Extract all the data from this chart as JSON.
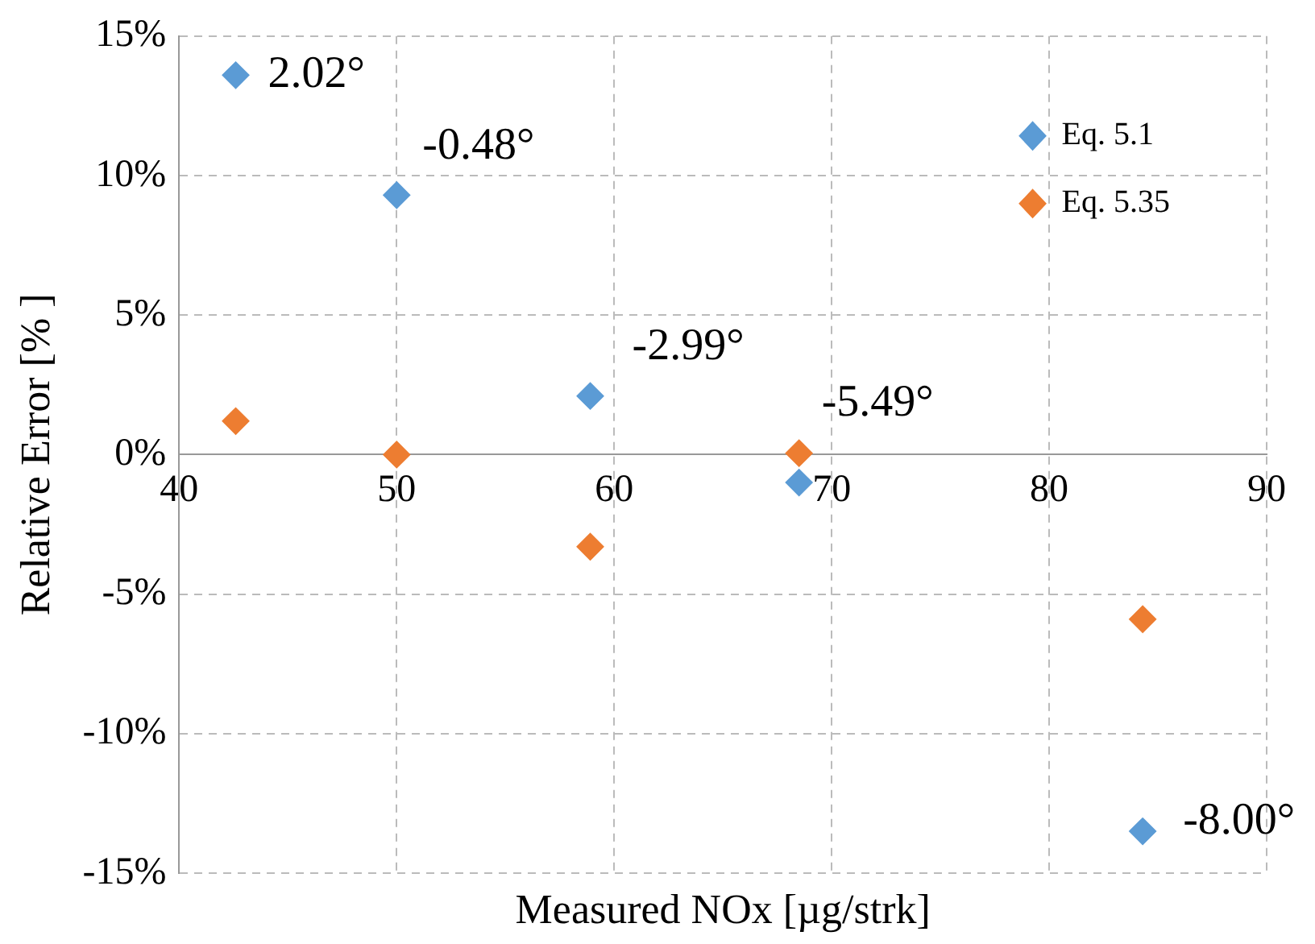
{
  "chart_data": {
    "type": "scatter",
    "xlabel": "Measured NOx [µg/strk]",
    "ylabel": "Relative Error [% ]",
    "xlim": [
      40,
      90
    ],
    "xticks": [
      40,
      50,
      60,
      70,
      80,
      90
    ],
    "ylim": [
      -15,
      15
    ],
    "yticks": [
      {
        "value": -15,
        "label": "-15%"
      },
      {
        "value": -10,
        "label": "-10%"
      },
      {
        "value": -5,
        "label": "-5%"
      },
      {
        "value": 0,
        "label": "0%"
      },
      {
        "value": 5,
        "label": "5%"
      },
      {
        "value": 10,
        "label": "10%"
      },
      {
        "value": 15,
        "label": "15%"
      }
    ],
    "grid": true,
    "legend": "top right",
    "marker": "diamond",
    "series": [
      {
        "name": "Eq. 5.1",
        "color": "#5b9bd5",
        "x": [
          42.6,
          50.0,
          58.9,
          68.5,
          84.3
        ],
        "values": [
          13.6,
          9.3,
          2.1,
          -1.0,
          -13.5
        ]
      },
      {
        "name": "Eq. 5.35",
        "color": "#ed7d31",
        "x": [
          42.6,
          50.0,
          58.9,
          68.5,
          84.3
        ],
        "values": [
          1.2,
          0.0,
          -3.3,
          0.05,
          -5.9
        ]
      }
    ],
    "annotations": [
      {
        "text": "2.02°",
        "x": 42.6,
        "y": 13.6
      },
      {
        "text": "-0.48°",
        "x": 50.0,
        "y": 9.3
      },
      {
        "text": "-2.99°",
        "x": 58.9,
        "y": 2.1
      },
      {
        "text": "-5.49°",
        "x": 68.5,
        "y": -1.0
      },
      {
        "text": "-8.00°",
        "x": 84.3,
        "y": -13.5
      }
    ]
  }
}
